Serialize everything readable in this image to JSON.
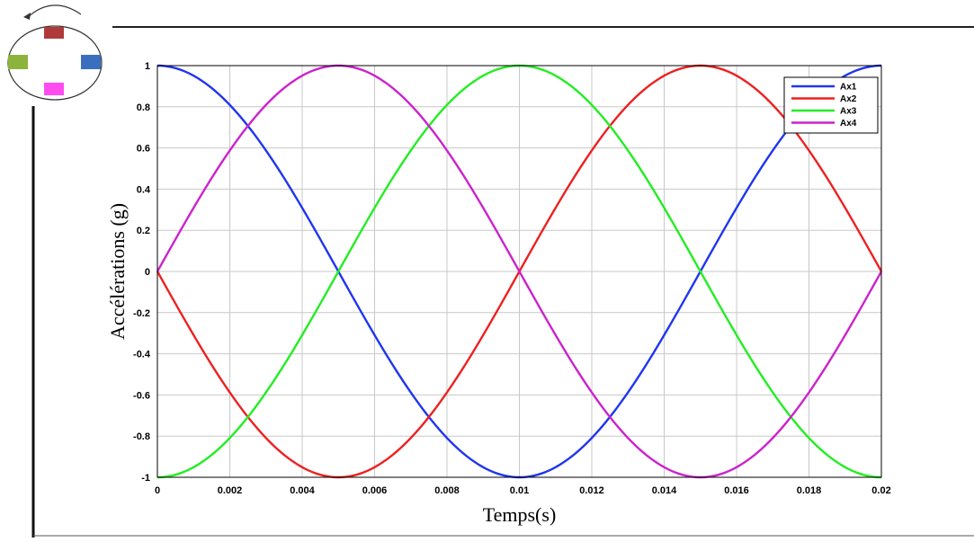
{
  "colors": {
    "ax1": "#1f35f0",
    "ax2": "#ee2020",
    "ax3": "#22ee22",
    "ax4": "#cc22cc",
    "grid": "#c8c8c8",
    "sensor_top": "#b03a3a",
    "sensor_left": "#8cb43c",
    "sensor_right": "#3a6fbf",
    "sensor_bottom": "#ff4cf0"
  },
  "inset": {
    "icon": "rotation-diagram-icon",
    "sensors": [
      "top",
      "left",
      "right",
      "bottom"
    ]
  },
  "chart_data": {
    "type": "line",
    "title": "",
    "xlabel": "Temps(s)",
    "ylabel": "Accélérations (g)",
    "xlim": [
      0,
      0.02
    ],
    "ylim": [
      -1,
      1
    ],
    "xticks": [
      0,
      0.002,
      0.004,
      0.006,
      0.008,
      0.01,
      0.012,
      0.014,
      0.016,
      0.018,
      0.02
    ],
    "xtick_labels": [
      "0",
      "0.002",
      "0.004",
      "0.006",
      "0.008",
      "0.01",
      "0.012",
      "0.014",
      "0.016",
      "0.018",
      "0.02"
    ],
    "yticks": [
      -1,
      -0.8,
      -0.6,
      -0.4,
      -0.2,
      0,
      0.2,
      0.4,
      0.6,
      0.8,
      1
    ],
    "ytick_labels": [
      "-1",
      "-0.8",
      "-0.6",
      "-0.4",
      "-0.2",
      "0",
      "0.2",
      "0.4",
      "0.6",
      "0.8",
      "1"
    ],
    "grid": true,
    "legend_position": "top-right",
    "x": [
      0,
      0.0025,
      0.005,
      0.0075,
      0.01,
      0.0125,
      0.015,
      0.0175,
      0.02
    ],
    "series": [
      {
        "name": "Ax1",
        "color": "#1f35f0",
        "values": [
          1,
          0.707,
          0,
          -0.707,
          -1,
          -0.707,
          0,
          0.707,
          1
        ]
      },
      {
        "name": "Ax2",
        "color": "#ee2020",
        "values": [
          0,
          -0.707,
          -1,
          -0.707,
          0,
          0.707,
          1,
          0.707,
          0
        ]
      },
      {
        "name": "Ax3",
        "color": "#22ee22",
        "values": [
          -1,
          -0.707,
          0,
          0.707,
          1,
          0.707,
          0,
          -0.707,
          -1
        ]
      },
      {
        "name": "Ax4",
        "color": "#cc22cc",
        "values": [
          0,
          0.707,
          1,
          0.707,
          0,
          -0.707,
          -1,
          -0.707,
          0
        ]
      }
    ]
  }
}
